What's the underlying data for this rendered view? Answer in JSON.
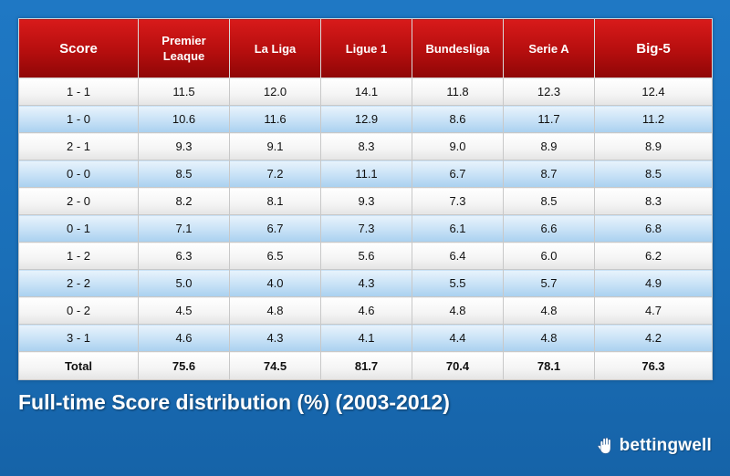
{
  "chart_data": {
    "type": "table",
    "title": "Full-time Score distribution (%) (2003-2012)",
    "columns": [
      "Score",
      "Premier Leaque",
      "La Liga",
      "Ligue 1",
      "Bundesliga",
      "Serie A",
      "Big-5"
    ],
    "rows": [
      {
        "label": "1 - 1",
        "values": [
          "11.5",
          "12.0",
          "14.1",
          "11.8",
          "12.3",
          "12.4"
        ]
      },
      {
        "label": "1 - 0",
        "values": [
          "10.6",
          "11.6",
          "12.9",
          "8.6",
          "11.7",
          "11.2"
        ]
      },
      {
        "label": "2 - 1",
        "values": [
          "9.3",
          "9.1",
          "8.3",
          "9.0",
          "8.9",
          "8.9"
        ]
      },
      {
        "label": "0 - 0",
        "values": [
          "8.5",
          "7.2",
          "11.1",
          "6.7",
          "8.7",
          "8.5"
        ]
      },
      {
        "label": "2 - 0",
        "values": [
          "8.2",
          "8.1",
          "9.3",
          "7.3",
          "8.5",
          "8.3"
        ]
      },
      {
        "label": "0 - 1",
        "values": [
          "7.1",
          "6.7",
          "7.3",
          "6.1",
          "6.6",
          "6.8"
        ]
      },
      {
        "label": "1 - 2",
        "values": [
          "6.3",
          "6.5",
          "5.6",
          "6.4",
          "6.0",
          "6.2"
        ]
      },
      {
        "label": "2 - 2",
        "values": [
          "5.0",
          "4.0",
          "4.3",
          "5.5",
          "5.7",
          "4.9"
        ]
      },
      {
        "label": "0 - 2",
        "values": [
          "4.5",
          "4.8",
          "4.6",
          "4.8",
          "4.8",
          "4.7"
        ]
      },
      {
        "label": "3 - 1",
        "values": [
          "4.6",
          "4.3",
          "4.1",
          "4.4",
          "4.8",
          "4.2"
        ]
      }
    ],
    "total": {
      "label": "Total",
      "values": [
        "75.6",
        "74.5",
        "81.7",
        "70.4",
        "78.1",
        "76.3"
      ]
    }
  },
  "brand": {
    "name": "bettingwell",
    "icon": "hand-logo-icon"
  },
  "colors": {
    "header_red": "#b50e0e",
    "row_blue": "#c7e1f6",
    "background_blue": "#1a6fb8"
  }
}
